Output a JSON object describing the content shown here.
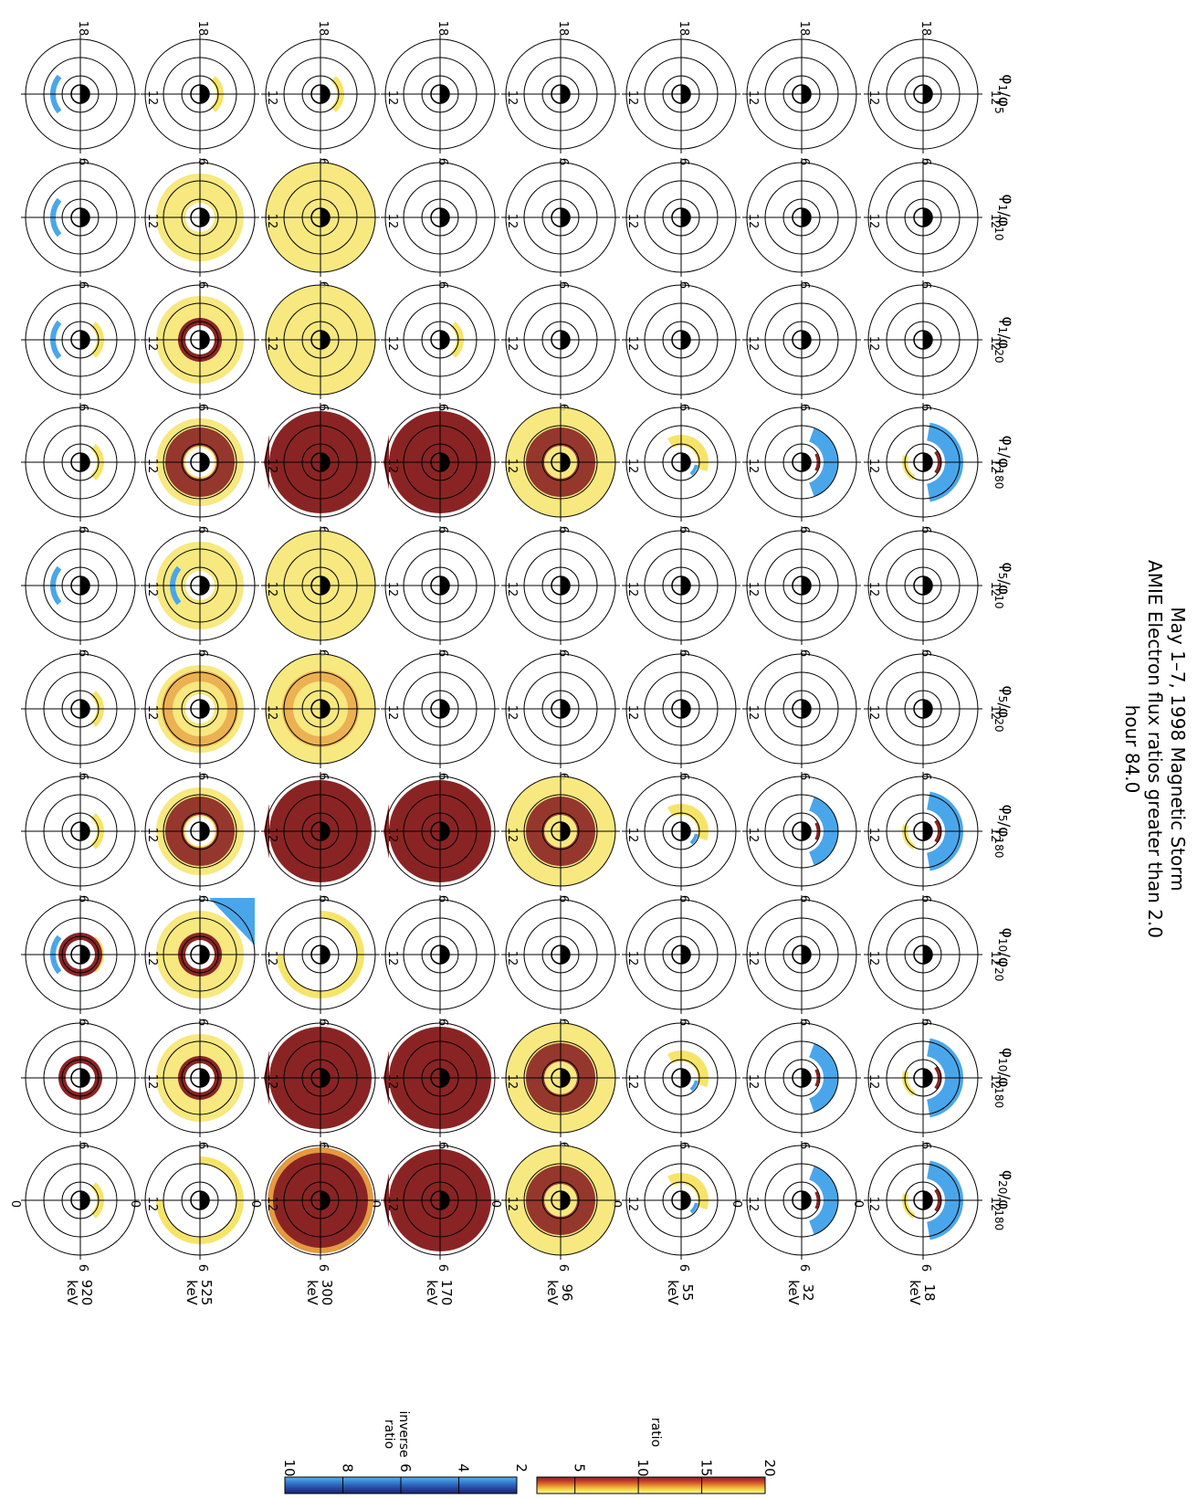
{
  "title": {
    "line1": "May 1–7, 1998 Magnetic Storm",
    "line2": "AMIE Electron flux ratios greater than 2.0",
    "line3": "hour 84.0"
  },
  "columns": [
    {
      "num": "1",
      "den": "5"
    },
    {
      "num": "1",
      "den": "10"
    },
    {
      "num": "1",
      "den": "20"
    },
    {
      "num": "1",
      "den": "180"
    },
    {
      "num": "5",
      "den": "10"
    },
    {
      "num": "5",
      "den": "20"
    },
    {
      "num": "5",
      "den": "180"
    },
    {
      "num": "10",
      "den": "20"
    },
    {
      "num": "10",
      "den": "180"
    },
    {
      "num": "20",
      "den": "180"
    }
  ],
  "rows": [
    {
      "energy": "18",
      "unit": "keV"
    },
    {
      "energy": "32",
      "unit": "keV"
    },
    {
      "energy": "55",
      "unit": "keV"
    },
    {
      "energy": "96",
      "unit": "keV"
    },
    {
      "energy": "170",
      "unit": "keV"
    },
    {
      "energy": "300",
      "unit": "keV"
    },
    {
      "energy": "525",
      "unit": "keV"
    },
    {
      "energy": "920",
      "unit": "keV"
    }
  ],
  "mlt_labels": {
    "top": "12",
    "right": "6",
    "bottom": "0",
    "left": "18"
  },
  "symbols": {
    "phi": "φ"
  },
  "colorbars": {
    "ratio": {
      "label": "ratio",
      "ticks": [
        "5",
        "10",
        "15",
        "20"
      ],
      "range": [
        2,
        20
      ],
      "colors": [
        "#fff8c0",
        "#f6e24a",
        "#eea836",
        "#d8682e",
        "#b8362d",
        "#8a2424"
      ]
    },
    "inverse": {
      "label_1": "inverse",
      "label_2": "ratio",
      "ticks": [
        "2",
        "4",
        "6",
        "8",
        "10"
      ],
      "range": [
        2,
        10
      ],
      "colors": [
        "#5ab4ef",
        "#3d8ad6",
        "#2c62b8",
        "#243f96",
        "#1e2468"
      ]
    }
  },
  "panel_colors": {
    "yellow": "#f6e46a",
    "dark_red": "#8a2424",
    "orange": "#e59a40",
    "blue": "#4aa6ea"
  },
  "panels": {
    "0,0": [],
    "0,1": [],
    "0,2": [],
    "0,3": [
      "BR"
    ],
    "0,4": [],
    "0,5": [],
    "0,6": [
      "BR"
    ],
    "0,7": [],
    "0,8": [
      "BR"
    ],
    "0,9": [
      "BR"
    ],
    "1,0": [],
    "1,1": [],
    "1,2": [],
    "1,3": [
      "BS"
    ],
    "1,4": [],
    "1,5": [],
    "1,6": [
      "BS"
    ],
    "1,7": [],
    "1,8": [
      "BS"
    ],
    "1,9": [
      "BS"
    ],
    "2,0": [],
    "2,1": [],
    "2,2": [],
    "2,3": [
      "YS"
    ],
    "2,4": [],
    "2,5": [],
    "2,6": [
      "YS"
    ],
    "2,7": [],
    "2,8": [
      "YS"
    ],
    "2,9": [
      "YS"
    ],
    "3,0": [],
    "3,1": [],
    "3,2": [],
    "3,3": [
      "YF",
      "RR"
    ],
    "3,4": [],
    "3,5": [],
    "3,6": [
      "YF",
      "RR"
    ],
    "3,7": [],
    "3,8": [
      "YF",
      "RR"
    ],
    "3,9": [
      "YF",
      "RR"
    ],
    "4,0": [],
    "4,1": [],
    "4,2": [
      "Y1"
    ],
    "4,3": [
      "D"
    ],
    "4,4": [],
    "4,5": [],
    "4,6": [
      "D"
    ],
    "4,7": [],
    "4,8": [
      "D"
    ],
    "4,9": [
      "D"
    ],
    "5,0": [
      "Y1"
    ],
    "5,1": [
      "YF"
    ],
    "5,2": [
      "YF"
    ],
    "5,3": [
      "D"
    ],
    "5,4": [
      "YF"
    ],
    "5,5": [
      "YF",
      "OR"
    ],
    "5,6": [
      "D"
    ],
    "5,7": [
      "Y2"
    ],
    "5,8": [
      "D"
    ],
    "5,9": [
      "DC"
    ],
    "6,0": [
      "Y1"
    ],
    "6,1": [
      "YR"
    ],
    "6,2": [
      "YR",
      "RI"
    ],
    "6,3": [
      "YR",
      "RR"
    ],
    "6,4": [
      "YR",
      "BA"
    ],
    "6,5": [
      "YR",
      "OR"
    ],
    "6,6": [
      "YR",
      "RR"
    ],
    "6,7": [
      "YR",
      "RI",
      "BC"
    ],
    "6,8": [
      "YR",
      "RI"
    ],
    "6,9": [
      "Y2"
    ],
    "7,0": [
      "BA"
    ],
    "7,1": [
      "BA"
    ],
    "7,2": [
      "Y1",
      "BA"
    ],
    "7,3": [
      "Y1"
    ],
    "7,4": [
      "BA"
    ],
    "7,5": [
      "Y1"
    ],
    "7,6": [
      "Y1"
    ],
    "7,7": [
      "Y1",
      "RI",
      "BA"
    ],
    "7,8": [
      "RI"
    ],
    "7,9": [
      "Y1"
    ]
  }
}
